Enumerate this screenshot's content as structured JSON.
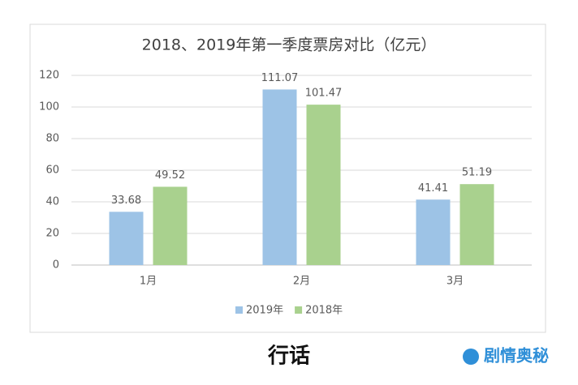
{
  "chart_data": {
    "type": "bar",
    "title": "2018、2019年第一季度票房对比（亿元）",
    "categories": [
      "1月",
      "2月",
      "3月"
    ],
    "series": [
      {
        "name": "2019年",
        "color": "#9dc3e6",
        "values": [
          33.68,
          111.07,
          41.41
        ]
      },
      {
        "name": "2018年",
        "color": "#a9d18e",
        "values": [
          49.52,
          101.47,
          51.19
        ]
      }
    ],
    "ylim": [
      0,
      120
    ],
    "yticks": [
      0,
      20,
      40,
      60,
      80,
      100,
      120
    ],
    "grid": true,
    "legend": "bottom",
    "annotations": [
      "行话",
      "剧情奥秘"
    ]
  }
}
